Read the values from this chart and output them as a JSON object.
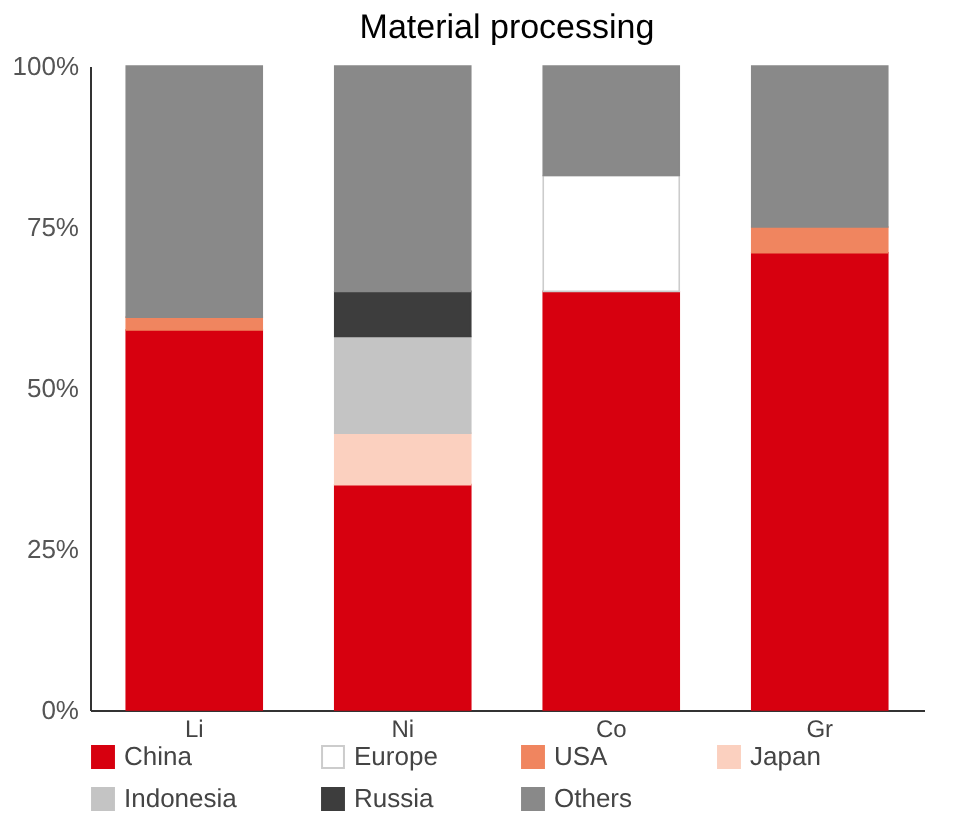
{
  "chart_data": {
    "type": "bar",
    "title": "Material processing",
    "stacked": true,
    "categories": [
      "Li",
      "Ni",
      "Co",
      "Gr"
    ],
    "series": [
      {
        "name": "China",
        "color": "#d7000f",
        "values": [
          59,
          35,
          65,
          71
        ]
      },
      {
        "name": "Europe",
        "color": "#ffffff",
        "values": [
          null,
          null,
          18,
          null
        ]
      },
      {
        "name": "USA",
        "color": "#f0855f",
        "values": [
          2,
          null,
          null,
          4
        ]
      },
      {
        "name": "Japan",
        "color": "#fbd0bf",
        "values": [
          null,
          8,
          null,
          null
        ]
      },
      {
        "name": "Indonesia",
        "color": "#c4c4c4",
        "values": [
          null,
          15,
          null,
          null
        ]
      },
      {
        "name": "Russia",
        "color": "#3d3d3d",
        "values": [
          null,
          7,
          null,
          null
        ]
      },
      {
        "name": "Others",
        "color": "#898989",
        "values": [
          39,
          35,
          17,
          25
        ]
      }
    ],
    "ylim": [
      0,
      100
    ],
    "yticks": [
      {
        "value": 0,
        "label": "0%"
      },
      {
        "value": 25,
        "label": "25%"
      },
      {
        "value": 50,
        "label": "50%"
      },
      {
        "value": 75,
        "label": "75%"
      },
      {
        "value": 100,
        "label": "100%"
      }
    ],
    "grid": false,
    "legend": "bottom"
  }
}
